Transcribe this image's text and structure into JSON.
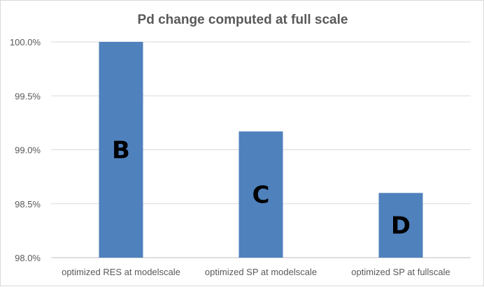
{
  "chart_data": {
    "type": "bar",
    "title": "Pd change computed at full scale",
    "xlabel": "",
    "ylabel": "",
    "categories": [
      "optimized RES at modelscale",
      "optimized SP at modelscale",
      "optimized SP at fullscale"
    ],
    "values": [
      100.0,
      99.17,
      98.6
    ],
    "bar_labels": [
      "B",
      "C",
      "D"
    ],
    "ylim": [
      98.0,
      100.0
    ],
    "yticks": [
      98.0,
      98.5,
      99.0,
      99.5,
      100.0
    ],
    "ytick_labels": [
      "98.0%",
      "98.5%",
      "99.0%",
      "99.5%",
      "100.0%"
    ],
    "grid": true,
    "legend": "none",
    "bar_color": "#4f81bd"
  }
}
